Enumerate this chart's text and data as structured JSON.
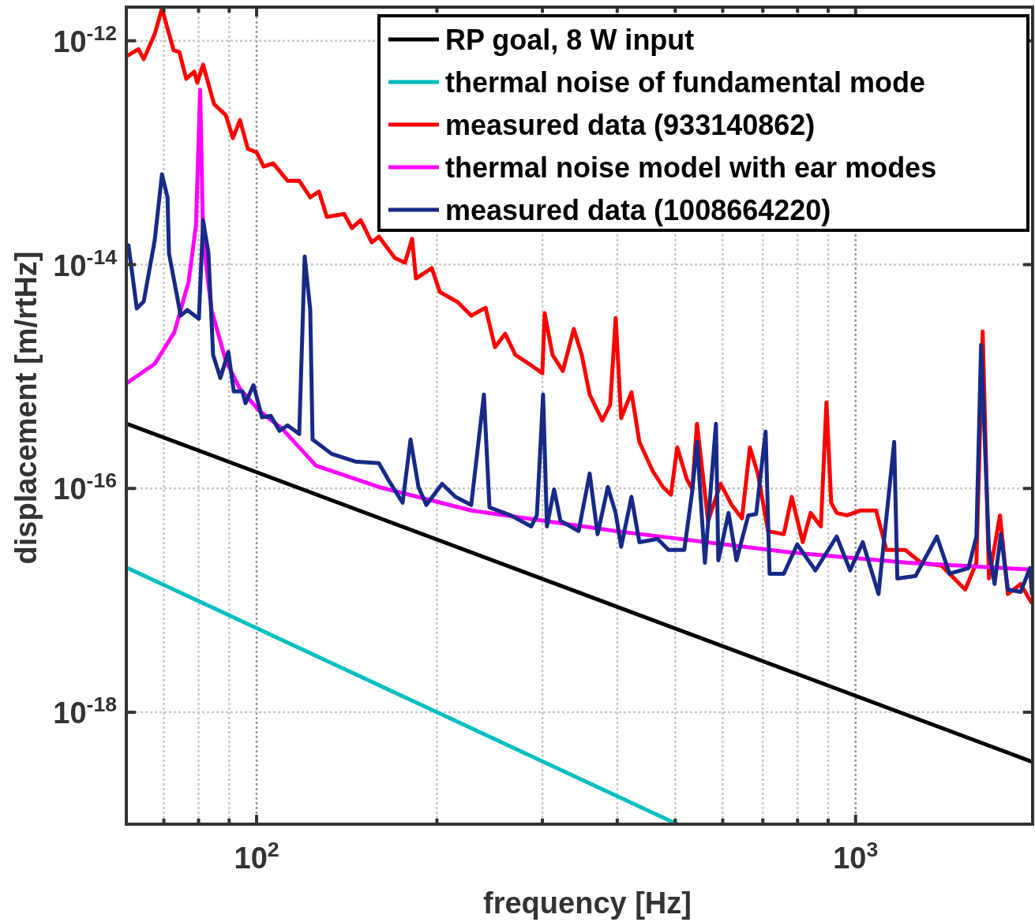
{
  "chart_data": {
    "type": "line",
    "xlabel": "frequency [Hz]",
    "ylabel": "displacement [m/rtHz]",
    "log": "xy",
    "grid": true,
    "legend": "top right",
    "line_style": "solid",
    "marker": "none",
    "xlim": [
      60.6,
      1975
    ],
    "ylim": [
      1e-19,
      2e-12
    ],
    "xticks": [
      {
        "value": 70,
        "label": null
      },
      {
        "value": 80,
        "label": null
      },
      {
        "value": 90,
        "label": null
      },
      {
        "value": 100,
        "label": "10$^{2}$"
      },
      {
        "value": 200,
        "label": null
      },
      {
        "value": 300,
        "label": null
      },
      {
        "value": 400,
        "label": null
      },
      {
        "value": 500,
        "label": null
      },
      {
        "value": 600,
        "label": null
      },
      {
        "value": 700,
        "label": null
      },
      {
        "value": 800,
        "label": null
      },
      {
        "value": 900,
        "label": null
      },
      {
        "value": 1000,
        "label": "10$^{3}$"
      }
    ],
    "yticks": [
      {
        "value": 1e-18,
        "label": "10$^{-18}$"
      },
      {
        "value": 1e-16,
        "label": "10$^{-16}$"
      },
      {
        "value": 1e-14,
        "label": "10$^{-14}$"
      },
      {
        "value": 1e-12,
        "label": "10$^{-12}$"
      }
    ],
    "series": [
      {
        "name": "RP goal, 8 W input",
        "color": "#000000",
        "x": [
          60.6,
          1975
        ],
        "values": [
          3.8e-16,
          3.6e-19
        ]
      },
      {
        "name": "thermal noise of fundamental mode",
        "color": "#00bfbf",
        "x": [
          60.6,
          503.8
        ],
        "values": [
          1.97e-17,
          1e-19
        ]
      },
      {
        "name": "measured data (933140862)",
        "color": "#ff0000",
        "x": [
          61.1,
          63.5,
          64.8,
          67.6,
          69.5,
          72.7,
          74.3,
          76.3,
          78.7,
          79.6,
          81.4,
          84.9,
          88.8,
          91.3,
          93.8,
          96.7,
          100,
          102.7,
          106.6,
          112.6,
          117.8,
          122.9,
          127.1,
          131.0,
          140.0,
          144.3,
          149.2,
          155.7,
          160.0,
          170.1,
          176.9,
          181.8,
          184.5,
          196.1,
          202.2,
          216.8,
          228.2,
          241.1,
          250.0,
          260.0,
          270.4,
          287.4,
          299.9,
          302.6,
          311.9,
          324.5,
          338.5,
          349.0,
          359.8,
          377.7,
          389.3,
          397.6,
          406.1,
          422.5,
          435.5,
          458.5,
          476.9,
          491.7,
          503.8,
          522.4,
          533.7,
          543.5,
          567.1,
          595.3,
          621.1,
          646.1,
          666.1,
          686.6,
          714.3,
          758.9,
          782.3,
          816.1,
          841.3,
          875.0,
          894.1,
          910.5,
          930.0,
          967.1,
          1018,
          1082,
          1126,
          1211,
          1286,
          1392,
          1524,
          1591,
          1630,
          1670,
          1742,
          1796,
          1886,
          1965
        ],
        "values": [
          7.45e-13,
          8.41e-13,
          6.85e-13,
          1.15e-12,
          1.94e-12,
          8.2e-13,
          7.94e-13,
          4.57e-13,
          5.3e-13,
          4.22e-13,
          6.12e-13,
          2.72e-13,
          2.17e-13,
          1.35e-13,
          1.96e-13,
          1.08e-13,
          1.01e-13,
          7.53e-14,
          8.03e-14,
          5.62e-14,
          5.62e-14,
          4e-14,
          4.49e-14,
          2.67e-14,
          2.84e-14,
          2.12e-14,
          2.5e-14,
          1.58e-14,
          1.78e-14,
          1.15e-14,
          1.04e-14,
          1.7e-14,
          7.52e-15,
          9.3e-15,
          5.7e-15,
          4.61e-15,
          3.5e-15,
          4.12e-15,
          1.83e-15,
          2.41e-15,
          1.56e-15,
          1.26e-15,
          1.07e-15,
          3.68e-15,
          1.56e-15,
          1.12e-15,
          2.66e-15,
          1.56e-15,
          6.9e-16,
          4.04e-16,
          5.6e-16,
          3.33e-15,
          4.25e-16,
          7.24e-16,
          2.61e-16,
          1.43e-16,
          1.03e-16,
          8.8e-17,
          2.33e-16,
          1.22e-16,
          9.8e-17,
          3.79e-16,
          5.14e-17,
          1.1e-16,
          7.11e-17,
          5.4e-17,
          2.33e-16,
          1.36e-16,
          4.16e-17,
          3.9e-17,
          8.4e-17,
          3.31e-17,
          6.04e-17,
          4.58e-17,
          5.87e-16,
          7.46e-17,
          6.04e-17,
          5.75e-17,
          6.35e-17,
          6.35e-17,
          2.82e-17,
          2.82e-17,
          2.17e-17,
          2.04e-17,
          1.25e-17,
          2.17e-17,
          2.53e-15,
          1.57e-17,
          5.75e-17,
          1.14e-17,
          1.4e-17,
          9.6e-18
        ]
      },
      {
        "name": "thermal noise model with ear modes",
        "color": "#ff00ff",
        "x": [
          60.6,
          67.6,
          72.9,
          77.0,
          79.2,
          80.5,
          81.4,
          84.1,
          88.8,
          93.8,
          101.2,
          110.2,
          125.6,
          160.0,
          228.2,
          397.6,
          775.2,
          1222,
          1970
        ],
        "values": [
          8.67e-16,
          1.3e-15,
          2.49e-15,
          7.04e-15,
          2.23e-14,
          3.64e-13,
          1.66e-14,
          3.93e-15,
          1.39e-15,
          7.74e-16,
          4.91e-16,
          3.44e-16,
          1.6e-16,
          1.03e-16,
          6.35e-17,
          4.16e-17,
          2.69e-17,
          2.17e-17,
          1.88e-17
        ]
      },
      {
        "name": "measured data (1008664220)",
        "color": "#172a88",
        "x": [
          61.1,
          63.1,
          64.8,
          67.6,
          69.5,
          71.0,
          71.4,
          74.7,
          76.6,
          80.1,
          81.4,
          83.1,
          84.6,
          87.0,
          89.7,
          91.6,
          94.7,
          95.8,
          98.8,
          102.1,
          105.6,
          109.2,
          112.6,
          117.8,
          120.3,
          122.9,
          124.0,
          133.4,
          146.1,
          160.0,
          166.5,
          175.3,
          180.7,
          186.3,
          192.0,
          204.0,
          214.8,
          228.2,
          239.6,
          244.8,
          265.6,
          287.4,
          293.7,
          300.8,
          305.3,
          313.8,
          321.6,
          344.8,
          359.8,
          370.9,
          385.8,
          397.6,
          406.1,
          422.5,
          435.5,
          467.0,
          487.2,
          517.6,
          533.7,
          543.5,
          560.3,
          584.6,
          590.0,
          613.7,
          632.6,
          662.1,
          682.3,
          707.6,
          718.4,
          758.9,
          799.0,
          856.9,
          930.0,
          979.0,
          1028,
          1092,
          1160,
          1174,
          1259,
          1367,
          1435,
          1543,
          1591,
          1620,
          1670,
          1706,
          1748,
          1796,
          1886,
          1955,
          1970
        ],
        "values": [
          1.49e-14,
          4.06e-15,
          4.69e-15,
          1.66e-14,
          6.41e-14,
          4e-14,
          1.26e-14,
          3.5e-15,
          3.93e-15,
          3.28e-15,
          2.5e-14,
          1.26e-14,
          1.56e-15,
          9.7e-16,
          1.66e-15,
          7.36e-16,
          7.36e-16,
          5.78e-16,
          8.39e-16,
          4.32e-16,
          4.46e-16,
          3.27e-16,
          3.66e-16,
          3.07e-16,
          1.18e-14,
          3.93e-15,
          2.74e-16,
          2.04e-16,
          1.74e-16,
          1.68e-16,
          1.16e-16,
          7.46e-17,
          2.74e-16,
          1.03e-16,
          7.11e-17,
          1.1e-16,
          8.4e-17,
          7.11e-17,
          6.9e-16,
          6.77e-17,
          5.75e-17,
          4.58e-17,
          5.75e-17,
          6.9e-16,
          4.58e-17,
          9.8e-17,
          5.14e-17,
          4.16e-17,
          1.36e-16,
          3.9e-17,
          1.03e-16,
          6.04e-17,
          3.01e-17,
          8.4e-17,
          3.31e-17,
          3.54e-17,
          2.82e-17,
          2.82e-17,
          9.4e-17,
          2.61e-16,
          2.17e-17,
          3.79e-16,
          2.28e-17,
          6.04e-17,
          2.28e-17,
          5.75e-17,
          5.9e-17,
          3.22e-16,
          1.73e-17,
          1.73e-17,
          3.16e-17,
          1.85e-17,
          3.72e-17,
          1.85e-17,
          3.31e-17,
          1.14e-17,
          2.61e-16,
          1.57e-17,
          1.65e-17,
          3.72e-17,
          1.73e-17,
          1.94e-17,
          3.72e-17,
          1.92e-15,
          2.82e-17,
          1.4e-17,
          3.9e-17,
          1.25e-17,
          1.19e-17,
          1.94e-17,
          1.14e-17
        ]
      }
    ]
  }
}
